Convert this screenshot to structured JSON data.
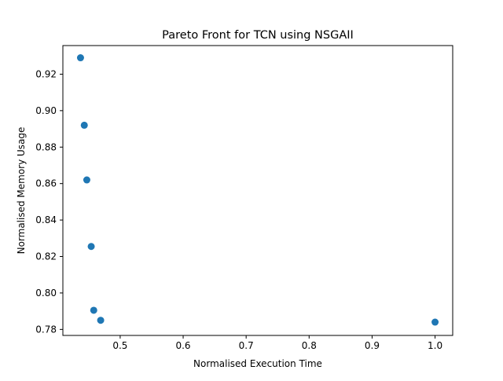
{
  "chart_data": {
    "type": "scatter",
    "title": "Pareto Front for TCN using NSGAII",
    "xlabel": "Normalised Execution Time",
    "ylabel": "Normalised Memory Usage",
    "xlim": [
      0.409,
      1.028
    ],
    "ylim": [
      0.7767,
      0.9357
    ],
    "xticks": [
      0.5,
      0.6,
      0.7,
      0.8,
      0.9,
      1.0
    ],
    "xtick_labels": [
      "0.5",
      "0.6",
      "0.7",
      "0.8",
      "0.9",
      "1.0"
    ],
    "yticks": [
      0.78,
      0.8,
      0.82,
      0.84,
      0.86,
      0.88,
      0.9,
      0.92
    ],
    "ytick_labels": [
      "0.78",
      "0.80",
      "0.82",
      "0.84",
      "0.86",
      "0.88",
      "0.90",
      "0.92"
    ],
    "grid": false,
    "marker_color": "#1f77b4",
    "points": [
      {
        "x": 0.437,
        "y": 0.929
      },
      {
        "x": 0.443,
        "y": 0.892
      },
      {
        "x": 0.447,
        "y": 0.862
      },
      {
        "x": 0.454,
        "y": 0.8255
      },
      {
        "x": 0.458,
        "y": 0.7905
      },
      {
        "x": 0.469,
        "y": 0.785
      },
      {
        "x": 1.0,
        "y": 0.784
      }
    ]
  }
}
